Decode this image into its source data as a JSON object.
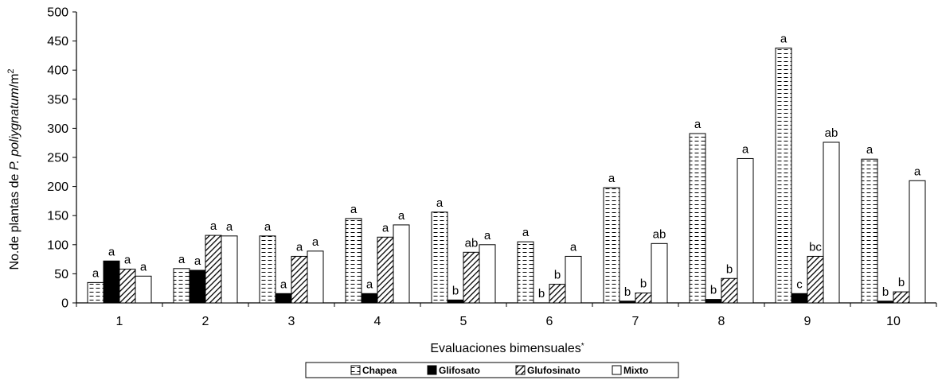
{
  "chart_data": {
    "type": "bar",
    "title": "",
    "xlabel": "Evaluaciones bimensuales",
    "xlabel_sup": "*",
    "ylabel_parts": {
      "pre": "No.de plantas de ",
      "italic": "P. poliygnatum",
      "post": "/m",
      "sup": "2"
    },
    "ylim": [
      0,
      500
    ],
    "yticks": [
      0,
      50,
      100,
      150,
      200,
      250,
      300,
      350,
      400,
      450,
      500
    ],
    "categories": [
      "1",
      "2",
      "3",
      "4",
      "5",
      "6",
      "7",
      "8",
      "9",
      "10"
    ],
    "grid": false,
    "legend_position": "bottom",
    "series": [
      {
        "name": "Chapea",
        "pattern": "dashes",
        "values": [
          35,
          59,
          115,
          145,
          156,
          105,
          198,
          291,
          438,
          247
        ],
        "labels": [
          "a",
          "a",
          "a",
          "a",
          "a",
          "a",
          "a",
          "a",
          "a",
          "a"
        ]
      },
      {
        "name": "Glifosato",
        "pattern": "solid-black",
        "values": [
          72,
          56,
          16,
          16,
          5,
          0,
          3,
          6,
          16,
          3
        ],
        "labels": [
          "a",
          "a",
          "a",
          "a",
          "b",
          "b",
          "b",
          "b",
          "c",
          "b"
        ]
      },
      {
        "name": "Glufosinato",
        "pattern": "diagonal-hatch",
        "values": [
          58,
          116,
          80,
          113,
          87,
          32,
          17,
          42,
          80,
          19
        ],
        "labels": [
          "a",
          "a",
          "a",
          "a",
          "ab",
          "b",
          "b",
          "b",
          "bc",
          "b"
        ]
      },
      {
        "name": "Mixto",
        "pattern": "white",
        "values": [
          46,
          115,
          89,
          134,
          100,
          80,
          102,
          248,
          276,
          210
        ],
        "labels": [
          "a",
          "a",
          "a",
          "a",
          "a",
          "a",
          "ab",
          "a",
          "ab",
          "a"
        ]
      }
    ]
  }
}
